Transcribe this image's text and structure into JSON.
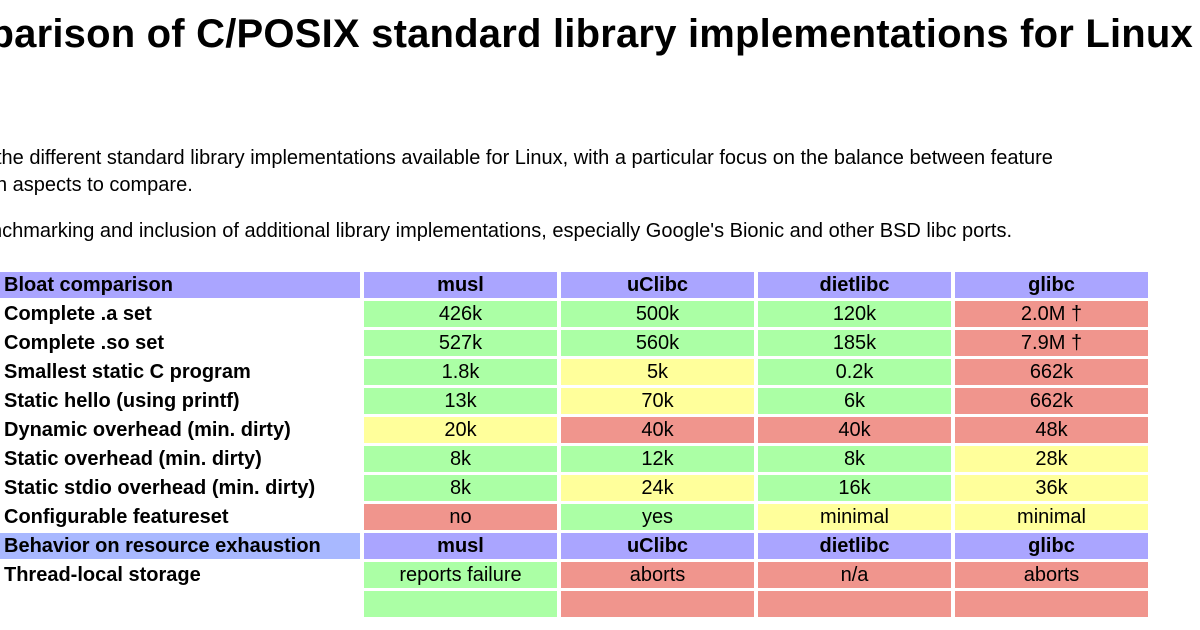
{
  "page": {
    "title": "Comparison of C/POSIX standard library implementations for Linux",
    "intro_line1": "the different standard library implementations available for Linux, with a particular focus on the balance between feature",
    "intro_line2": "n aspects to compare.",
    "intro_line3": "nchmarking and inclusion of additional library implementations, especially Google's Bionic and other BSD libc ports."
  },
  "colors": {
    "header": "#aaa5ff",
    "header_alt": "#a8b8ff",
    "good": "#abffa5",
    "mid": "#ffff9b",
    "bad": "#f0958d"
  },
  "table": {
    "sections": [
      {
        "title": "Bloat comparison",
        "columns": [
          "musl",
          "uClibc",
          "dietlibc",
          "glibc"
        ],
        "rows": [
          {
            "label": "Complete .a set",
            "cells": [
              {
                "v": "426k",
                "s": "good"
              },
              {
                "v": "500k",
                "s": "good"
              },
              {
                "v": "120k",
                "s": "good"
              },
              {
                "v": "2.0M †",
                "s": "bad"
              }
            ]
          },
          {
            "label": "Complete .so set",
            "cells": [
              {
                "v": "527k",
                "s": "good"
              },
              {
                "v": "560k",
                "s": "good"
              },
              {
                "v": "185k",
                "s": "good"
              },
              {
                "v": "7.9M †",
                "s": "bad"
              }
            ]
          },
          {
            "label": "Smallest static C program",
            "cells": [
              {
                "v": "1.8k",
                "s": "good"
              },
              {
                "v": "5k",
                "s": "mid"
              },
              {
                "v": "0.2k",
                "s": "good"
              },
              {
                "v": "662k",
                "s": "bad"
              }
            ]
          },
          {
            "label": "Static hello (using printf)",
            "cells": [
              {
                "v": "13k",
                "s": "good"
              },
              {
                "v": "70k",
                "s": "mid"
              },
              {
                "v": "6k",
                "s": "good"
              },
              {
                "v": "662k",
                "s": "bad"
              }
            ]
          },
          {
            "label": "Dynamic overhead (min. dirty)",
            "cells": [
              {
                "v": "20k",
                "s": "mid"
              },
              {
                "v": "40k",
                "s": "bad"
              },
              {
                "v": "40k",
                "s": "bad"
              },
              {
                "v": "48k",
                "s": "bad"
              }
            ]
          },
          {
            "label": "Static overhead (min. dirty)",
            "cells": [
              {
                "v": "8k",
                "s": "good"
              },
              {
                "v": "12k",
                "s": "good"
              },
              {
                "v": "8k",
                "s": "good"
              },
              {
                "v": "28k",
                "s": "mid"
              }
            ]
          },
          {
            "label": "Static stdio overhead (min. dirty)",
            "cells": [
              {
                "v": "8k",
                "s": "good"
              },
              {
                "v": "24k",
                "s": "mid"
              },
              {
                "v": "16k",
                "s": "good"
              },
              {
                "v": "36k",
                "s": "mid"
              }
            ]
          },
          {
            "label": "Configurable featureset",
            "cells": [
              {
                "v": "no",
                "s": "bad"
              },
              {
                "v": "yes",
                "s": "good"
              },
              {
                "v": "minimal",
                "s": "mid"
              },
              {
                "v": "minimal",
                "s": "mid"
              }
            ]
          }
        ]
      },
      {
        "title": "Behavior on resource exhaustion",
        "columns": [
          "musl",
          "uClibc",
          "dietlibc",
          "glibc"
        ],
        "rows": [
          {
            "label": "Thread-local storage",
            "cells": [
              {
                "v": "reports failure",
                "s": "good"
              },
              {
                "v": "aborts",
                "s": "bad"
              },
              {
                "v": "n/a",
                "s": "bad"
              },
              {
                "v": "aborts",
                "s": "bad"
              }
            ]
          },
          {
            "label": "",
            "cells": [
              {
                "v": "",
                "s": "good"
              },
              {
                "v": "",
                "s": "bad"
              },
              {
                "v": "",
                "s": "bad"
              },
              {
                "v": "",
                "s": "bad"
              }
            ]
          }
        ]
      }
    ]
  }
}
